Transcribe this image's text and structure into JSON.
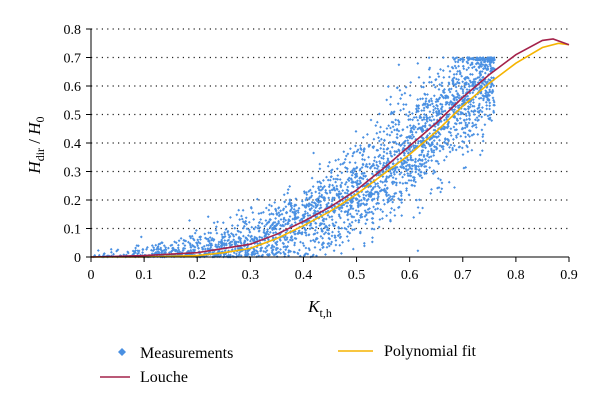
{
  "chart_data": {
    "type": "scatter",
    "xlabel": "K",
    "xlabel_sub": "t,h",
    "ylabel": "H",
    "ylabel_sub": "dir",
    "ylabel_den": "H",
    "ylabel_den_sub": "0",
    "xlim": [
      0,
      0.9
    ],
    "ylim": [
      0,
      0.8
    ],
    "x_ticks": [
      "0",
      "0.1",
      "0.2",
      "0.3",
      "0.4",
      "0.5",
      "0.6",
      "0.7",
      "0.8",
      "0.9"
    ],
    "y_ticks": [
      "0",
      "0.1",
      "0.2",
      "0.3",
      "0.4",
      "0.5",
      "0.6",
      "0.7",
      "0.8"
    ],
    "grid": "horizontal dotted",
    "legend_position": "bottom",
    "series": [
      {
        "name": "Measurements",
        "kind": "scatter",
        "color": "#4a90e2",
        "trend_points": [
          [
            0.0,
            0.0
          ],
          [
            0.05,
            0.003
          ],
          [
            0.1,
            0.005
          ],
          [
            0.15,
            0.008
          ],
          [
            0.2,
            0.015
          ],
          [
            0.25,
            0.03
          ],
          [
            0.3,
            0.05
          ],
          [
            0.35,
            0.08
          ],
          [
            0.4,
            0.12
          ],
          [
            0.45,
            0.17
          ],
          [
            0.5,
            0.23
          ],
          [
            0.55,
            0.3
          ],
          [
            0.6,
            0.38
          ],
          [
            0.65,
            0.47
          ],
          [
            0.7,
            0.56
          ],
          [
            0.75,
            0.64
          ]
        ],
        "x_range": [
          0.0,
          0.76
        ],
        "y_max": 0.7
      },
      {
        "name": "Louche",
        "kind": "line",
        "color": "#a4224a",
        "points": [
          [
            0.0,
            0.0
          ],
          [
            0.1,
            0.005
          ],
          [
            0.2,
            0.015
          ],
          [
            0.3,
            0.045
          ],
          [
            0.35,
            0.08
          ],
          [
            0.4,
            0.125
          ],
          [
            0.45,
            0.175
          ],
          [
            0.5,
            0.235
          ],
          [
            0.55,
            0.31
          ],
          [
            0.6,
            0.39
          ],
          [
            0.65,
            0.47
          ],
          [
            0.7,
            0.56
          ],
          [
            0.75,
            0.64
          ],
          [
            0.8,
            0.71
          ],
          [
            0.85,
            0.76
          ],
          [
            0.87,
            0.765
          ],
          [
            0.9,
            0.745
          ]
        ]
      },
      {
        "name": "Polynomial fit",
        "kind": "line",
        "color": "#f5b400",
        "points": [
          [
            0.0,
            0.0
          ],
          [
            0.1,
            0.0
          ],
          [
            0.2,
            0.005
          ],
          [
            0.25,
            0.015
          ],
          [
            0.3,
            0.03
          ],
          [
            0.35,
            0.065
          ],
          [
            0.4,
            0.11
          ],
          [
            0.45,
            0.16
          ],
          [
            0.5,
            0.22
          ],
          [
            0.55,
            0.29
          ],
          [
            0.6,
            0.36
          ],
          [
            0.65,
            0.44
          ],
          [
            0.7,
            0.53
          ],
          [
            0.75,
            0.61
          ],
          [
            0.8,
            0.68
          ],
          [
            0.85,
            0.735
          ],
          [
            0.88,
            0.75
          ],
          [
            0.9,
            0.745
          ]
        ]
      }
    ]
  }
}
